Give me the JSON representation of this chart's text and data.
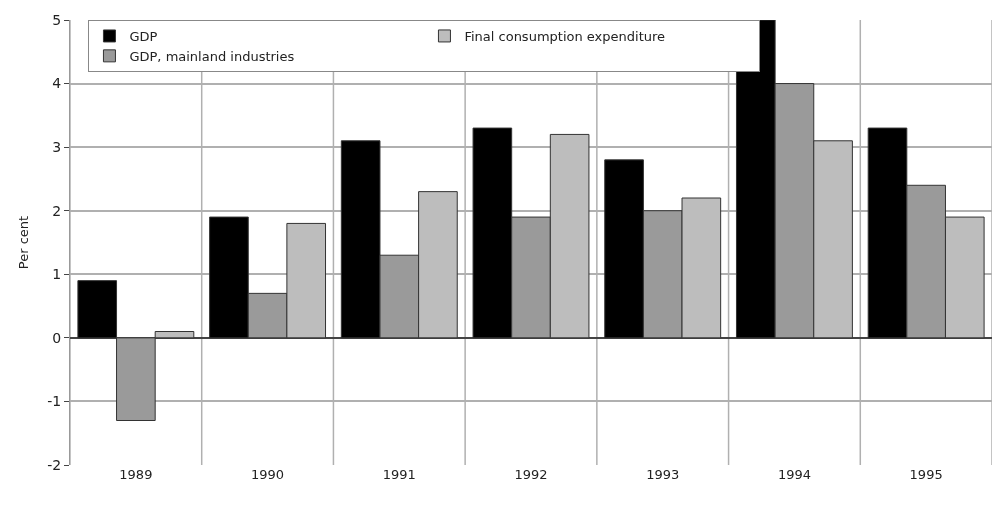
{
  "chart_data": {
    "type": "bar",
    "ylabel": "Per cent",
    "categories": [
      "1989",
      "1990",
      "1991",
      "1992",
      "1993",
      "1994",
      "1995"
    ],
    "series": [
      {
        "name": "GDP",
        "color": "#000000",
        "values": [
          0.9,
          1.9,
          3.1,
          3.3,
          2.8,
          5.0,
          3.3
        ]
      },
      {
        "name": "GDP, mainland industries",
        "color": "#9a9a9a",
        "values": [
          -1.3,
          0.7,
          1.3,
          1.9,
          2.0,
          4.0,
          2.4
        ]
      },
      {
        "name": "Final consumption expenditure",
        "color": "#bdbdbd",
        "values": [
          0.1,
          1.8,
          2.3,
          3.2,
          2.2,
          3.1,
          1.9
        ]
      }
    ],
    "ylim": [
      -2,
      5
    ],
    "yticks": [
      -2,
      -1,
      0,
      1,
      2,
      3,
      4,
      5
    ],
    "grid": true,
    "legend": "top left"
  }
}
